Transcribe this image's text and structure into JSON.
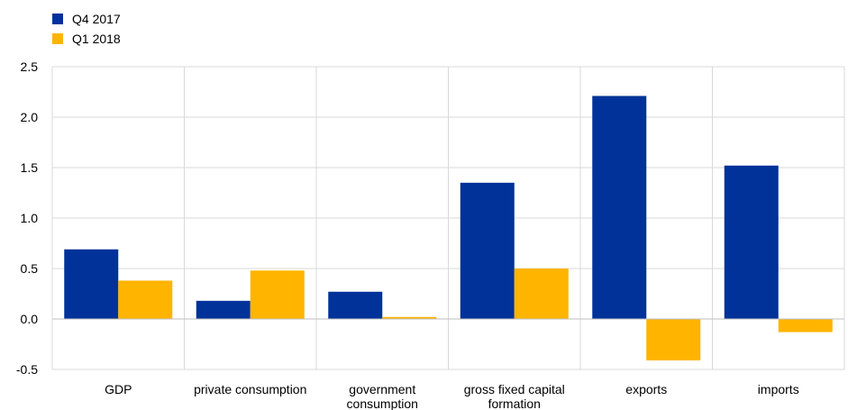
{
  "chart_data": {
    "type": "bar",
    "categories": [
      [
        "GDP"
      ],
      [
        "private consumption"
      ],
      [
        "government",
        "consumption"
      ],
      [
        "gross fixed capital",
        "formation"
      ],
      [
        "exports"
      ],
      [
        "imports"
      ]
    ],
    "series": [
      {
        "name": "Q4 2017",
        "color": "#003299",
        "values": [
          0.69,
          0.18,
          0.27,
          1.35,
          2.21,
          1.52
        ]
      },
      {
        "name": "Q1 2018",
        "color": "#FFB400",
        "values": [
          0.38,
          0.48,
          0.02,
          0.5,
          -0.41,
          -0.13
        ]
      }
    ],
    "ylim": [
      -0.5,
      2.5
    ],
    "yticks": [
      -0.5,
      0.0,
      0.5,
      1.0,
      1.5,
      2.0,
      2.5
    ],
    "ytick_labels": [
      "-0.5",
      "0.0",
      "0.5",
      "1.0",
      "1.5",
      "2.0",
      "2.5"
    ],
    "legend_position": "top-left",
    "grid": "vertical separators between categories",
    "title": "",
    "xlabel": "",
    "ylabel": ""
  }
}
